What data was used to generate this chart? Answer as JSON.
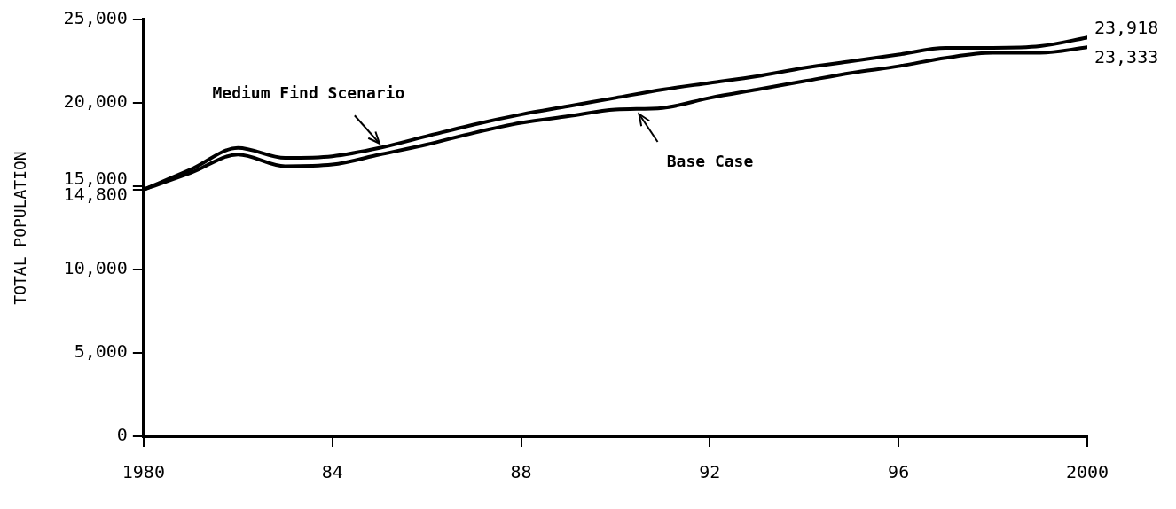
{
  "chart_data": {
    "type": "line",
    "ylabel": "TOTAL POPULATION",
    "x": [
      1980,
      1981,
      1982,
      1983,
      1984,
      1985,
      1986,
      1987,
      1988,
      1989,
      1990,
      1991,
      1992,
      1993,
      1994,
      1995,
      1996,
      1997,
      1998,
      1999,
      2000
    ],
    "series": [
      {
        "name": "Medium Find Scenario",
        "color": "#000000",
        "values": [
          14800,
          16000,
          17300,
          16700,
          16800,
          17300,
          18000,
          18700,
          19300,
          19800,
          20300,
          20800,
          21200,
          21600,
          22100,
          22500,
          22900,
          23300,
          23300,
          23400,
          23918
        ],
        "value_labels": [
          null,
          null,
          null,
          null,
          null,
          null,
          null,
          null,
          null,
          null,
          null,
          null,
          null,
          null,
          null,
          null,
          null,
          null,
          null,
          null,
          "23,918"
        ]
      },
      {
        "name": "Base Case",
        "color": "#000000",
        "values": [
          14800,
          15800,
          16900,
          16200,
          16300,
          16900,
          17500,
          18200,
          18800,
          19200,
          19600,
          19700,
          20300,
          20800,
          21300,
          21800,
          22200,
          22700,
          23000,
          23000,
          23333
        ],
        "value_labels": [
          null,
          null,
          null,
          null,
          null,
          null,
          null,
          null,
          null,
          null,
          null,
          null,
          null,
          null,
          null,
          null,
          null,
          null,
          null,
          null,
          "23,333"
        ]
      }
    ],
    "xlim": [
      1980,
      2000
    ],
    "xticks": [
      {
        "value": 1980,
        "label": "1980"
      },
      {
        "value": 1984,
        "label": "84"
      },
      {
        "value": 1988,
        "label": "88"
      },
      {
        "value": 1992,
        "label": "92"
      },
      {
        "value": 1996,
        "label": "96"
      },
      {
        "value": 2000,
        "label": "2000"
      }
    ],
    "ylim": [
      0,
      25000
    ],
    "yticks": [
      0,
      {
        "value": 5000,
        "label": "5,000"
      },
      {
        "value": 10000,
        "label": "10,000"
      },
      {
        "value": 15000,
        "label": "15,000"
      },
      {
        "value": 14800,
        "label": "14,800"
      },
      {
        "value": 20000,
        "label": "20,000"
      },
      {
        "value": 25000,
        "label": "25,000"
      }
    ],
    "grid": false,
    "legend": false,
    "marker": "none",
    "line_style": "solid"
  }
}
